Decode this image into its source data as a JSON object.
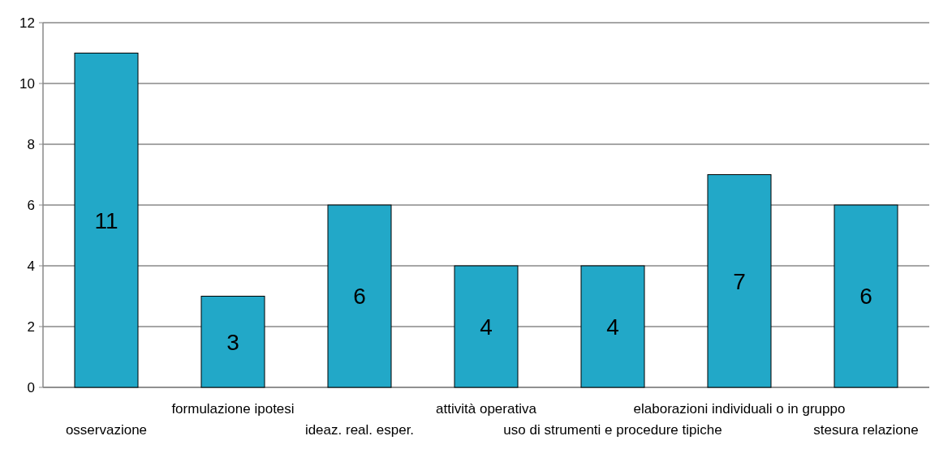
{
  "chart_data": {
    "type": "bar",
    "categories": [
      "osservazione",
      "formulazione ipotesi",
      "ideaz. real. esper.",
      "attività operativa",
      "uso di strumenti e procedure tipiche",
      "elaborazioni individuali o in gruppo",
      "stesura relazione"
    ],
    "values": [
      11,
      3,
      6,
      4,
      4,
      7,
      6
    ],
    "color": "#22a8c8",
    "ylim": [
      0,
      12
    ],
    "yticks": [
      0,
      2,
      4,
      6,
      8,
      10,
      12
    ],
    "grid": "y",
    "data_labels": true
  }
}
